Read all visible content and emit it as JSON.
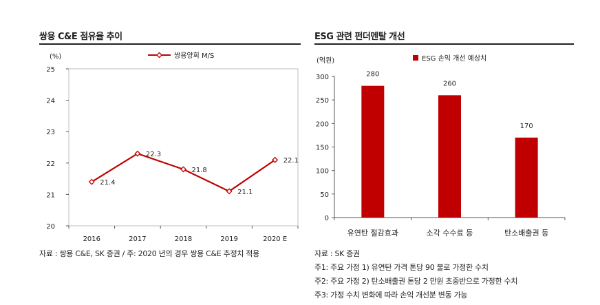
{
  "left_panel": {
    "title": "쌍용 C&E 점유율 추이",
    "source": "자료 : 쌍용 C&E, SK 증권 / 주: 2020 년의 경우 쌍용 C&E 추정치 적용"
  },
  "right_panel": {
    "title": "ESG 관련 펀더멘탈 개선",
    "source_lines": [
      "자료 : SK 증권",
      "주1: 주요 가정 1) 유연탄 가격 톤당 90 불로 가정한 수치",
      "주2: 주요 가정 2) 탄소배출권 톤당 2 만원 초중반으로 가정한 수치",
      "주3: 가정 수치 변화에 따라 손익 개선분 변동 가능"
    ]
  },
  "chart_data": [
    {
      "type": "line",
      "unit_label": "(%)",
      "categories": [
        "2016",
        "2017",
        "2018",
        "2019",
        "2020 E"
      ],
      "series": [
        {
          "name": "쌍용양회 M/S",
          "values": [
            21.4,
            22.3,
            21.8,
            21.1,
            22.1
          ],
          "color": "#c00000"
        }
      ],
      "ylim": [
        20,
        25
      ],
      "yticks": [
        20,
        21,
        22,
        23,
        24,
        25
      ],
      "grid": false,
      "legend": "top-center"
    },
    {
      "type": "bar",
      "unit_label": "(억원)",
      "categories": [
        "유연탄 절감효과",
        "소각 수수료 등",
        "탄소배출권 등"
      ],
      "series": [
        {
          "name": "ESG 손익 개선 예상치",
          "values": [
            280,
            260,
            170
          ],
          "color": "#c00000"
        }
      ],
      "ylim": [
        0,
        300
      ],
      "yticks": [
        0,
        50,
        100,
        150,
        200,
        250,
        300
      ],
      "grid": false,
      "legend": "top-center"
    }
  ]
}
